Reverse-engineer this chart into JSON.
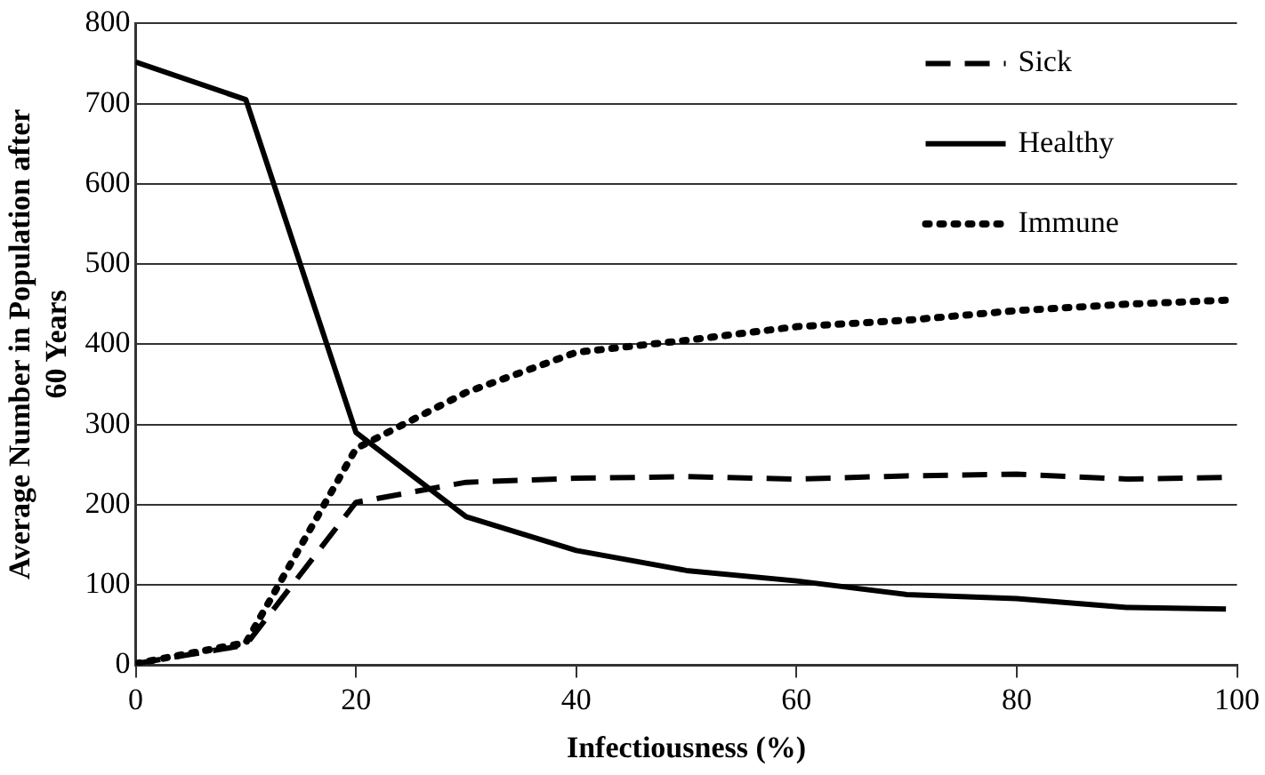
{
  "chart_data": {
    "type": "line",
    "xlabel": "Infectiousness (%)",
    "ylabel": "Average Number in Population after 60 Years",
    "x": [
      0,
      10,
      20,
      30,
      40,
      50,
      60,
      70,
      80,
      90,
      99
    ],
    "series": [
      {
        "name": "Sick",
        "color": "#000000",
        "line_style": "dashed",
        "values": [
          2,
          25,
          203,
          228,
          233,
          235,
          232,
          236,
          238,
          232,
          234
        ]
      },
      {
        "name": "Healthy",
        "color": "#000000",
        "line_style": "solid",
        "values": [
          752,
          705,
          290,
          185,
          143,
          118,
          105,
          88,
          83,
          72,
          70
        ]
      },
      {
        "name": "Immune",
        "color": "#000000",
        "line_style": "dotted",
        "values": [
          2,
          28,
          270,
          340,
          390,
          405,
          422,
          430,
          442,
          450,
          455
        ]
      }
    ],
    "xlim": [
      0,
      100
    ],
    "xticks": [
      0,
      20,
      40,
      60,
      80,
      100
    ],
    "ylim": [
      0,
      800
    ],
    "yticks": [
      0,
      100,
      200,
      300,
      400,
      500,
      600,
      700,
      800
    ],
    "grid": "y",
    "legend": "top right",
    "marker": "none"
  }
}
